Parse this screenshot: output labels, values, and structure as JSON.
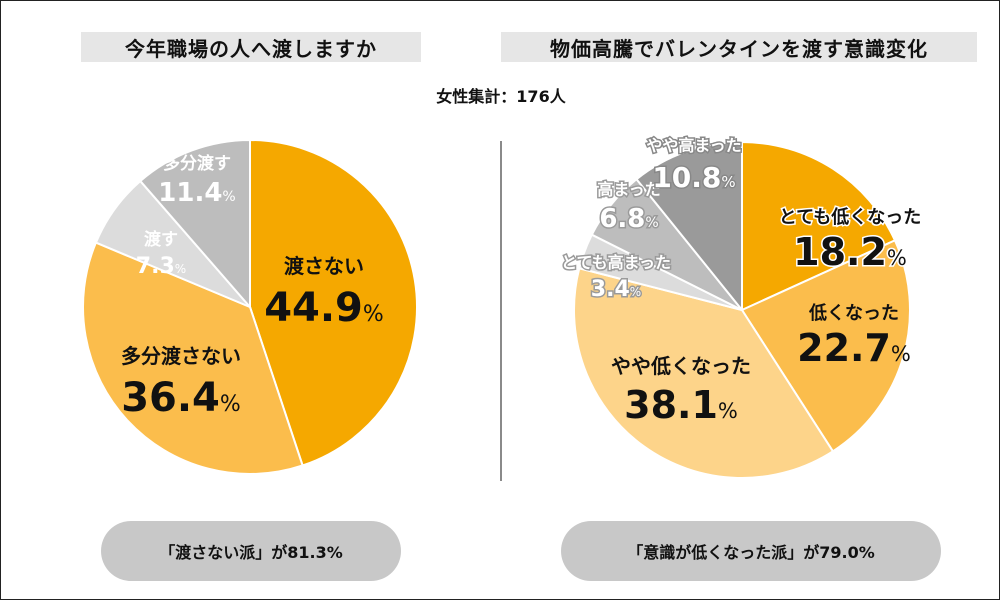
{
  "subtitle": "女性集計：176人",
  "colors": {
    "orange": "#f5a800",
    "amber": "#fbbd4c",
    "light_orange": "#fdd48a",
    "gray_light": "#dcdcdc",
    "gray_mid": "#bdbdbd",
    "gray_dark": "#a3a3a3",
    "gray_darker": "#9a9a9a"
  },
  "summaries": {
    "left": "「渡さない派」が81.3%",
    "right": "「意識が低くなった派」が79.0%"
  },
  "chart_data": [
    {
      "type": "pie",
      "title": "今年職場の人へ渡しますか",
      "unit": "%",
      "slices": [
        {
          "label": "渡さない",
          "value": 44.9,
          "color": "#f5a800"
        },
        {
          "label": "多分渡さない",
          "value": 36.4,
          "color": "#fbbd4c"
        },
        {
          "label": "渡す",
          "value": 7.3,
          "color": "#dcdcdc"
        },
        {
          "label": "多分渡す",
          "value": 11.4,
          "color": "#bdbdbd"
        }
      ]
    },
    {
      "type": "pie",
      "title": "物価高騰でバレンタインを渡す意識変化",
      "unit": "%",
      "slices": [
        {
          "label": "とても低くなった",
          "value": 18.2,
          "color": "#f5a800"
        },
        {
          "label": "低くなった",
          "value": 22.7,
          "color": "#fbbd4c"
        },
        {
          "label": "やや低くなった",
          "value": 38.1,
          "color": "#fdd48a"
        },
        {
          "label": "とても高まった",
          "value": 3.4,
          "color": "#dcdcdc"
        },
        {
          "label": "高まった",
          "value": 6.8,
          "color": "#bdbdbd"
        },
        {
          "label": "やや高まった",
          "value": 10.8,
          "color": "#9a9a9a"
        }
      ]
    }
  ]
}
